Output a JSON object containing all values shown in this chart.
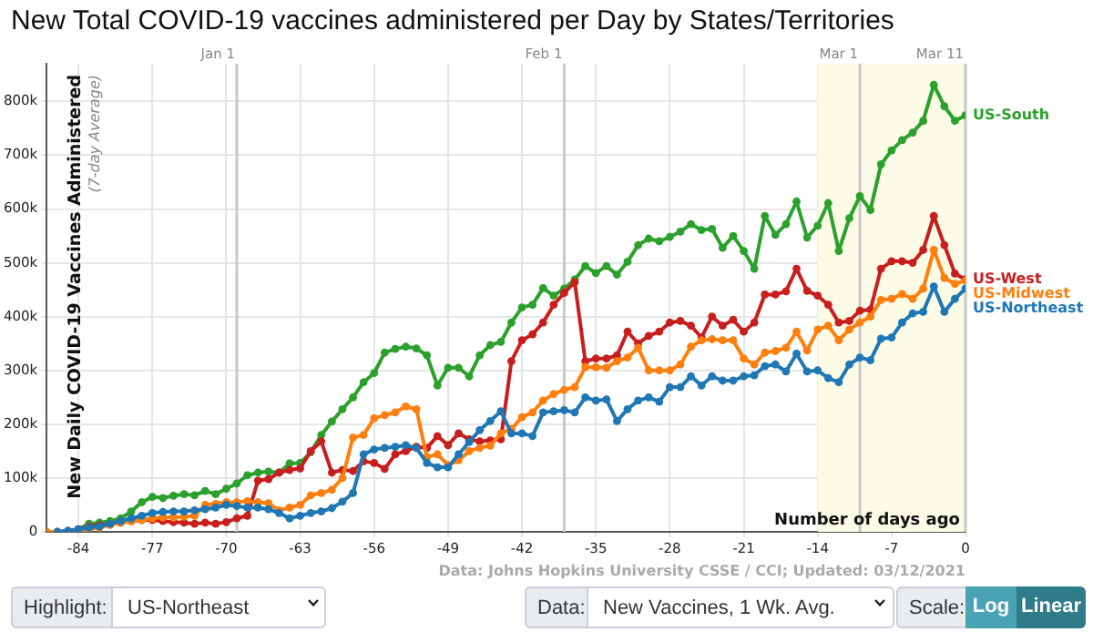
{
  "chart_data": {
    "type": "line",
    "title": "New Total COVID-19 vaccines administered per Day by States/Territories",
    "ylabel": "New Daily COVID-19 Vaccines Administered",
    "xlabel": "Number of days ago",
    "xlim": [
      -87,
      0
    ],
    "xticks": [
      -84,
      -77,
      -70,
      -63,
      -56,
      -49,
      -42,
      -35,
      -28,
      -21,
      -14,
      -7,
      0
    ],
    "ref_lines": [
      {
        "axis": "x",
        "value": -69,
        "label": "Jan 1",
        "color": "#c8c8c8"
      },
      {
        "axis": "x",
        "value": -38,
        "label": "Feb 1",
        "color": "#c8c8c8"
      },
      {
        "axis": "x",
        "value": -10,
        "label": "Mar 1",
        "color": "#c8c8c8"
      },
      {
        "axis": "x",
        "value": 0,
        "label": "Mar 11",
        "color": "#c8c8c8"
      }
    ],
    "ylim": [
      0,
      870000
    ],
    "yticks": [
      0,
      {
        "value": 100000,
        "label": "100k"
      },
      {
        "value": 200000,
        "label": "200k"
      },
      {
        "value": 300000,
        "label": "300k"
      },
      {
        "value": 400000,
        "label": "400k"
      },
      {
        "value": 500000,
        "label": "500k"
      },
      {
        "value": 600000,
        "label": "600k"
      },
      {
        "value": 700000,
        "label": "700k"
      },
      {
        "value": 800000,
        "label": "800k"
      }
    ],
    "grid": true,
    "legend": false,
    "marker": "circle",
    "line_style": "solid",
    "bands": [
      {
        "axis": "x",
        "from": -14,
        "to": 0,
        "color": "#fbfbe6"
      }
    ],
    "annotations": [
      "(7-day Average)",
      "Data: Johns Hopkins University CSSE / CCI; Updated: 03/12/2021",
      "Highlight:",
      "US-Northeast",
      "Data:",
      "New Vaccines, 1 Wk. Avg.",
      "Scale:",
      "Log",
      "Linear"
    ],
    "series": [
      {
        "name": "US-South",
        "color": "#2ca02c",
        "x": [
          -84,
          -83,
          -82,
          -81,
          -80,
          -79,
          -78,
          -77,
          -76,
          -75,
          -74,
          -73,
          -72,
          -71,
          -70,
          -69,
          -68,
          -67,
          -66,
          -65,
          -64,
          -63,
          -62,
          -61,
          -60,
          -59,
          -58,
          -57,
          -56,
          -55,
          -54,
          -53,
          -52,
          -51,
          -50,
          -49,
          -48,
          -47,
          -46,
          -45,
          -44,
          -43,
          -42,
          -41,
          -40,
          -39,
          -38,
          -37,
          -36,
          -35,
          -34,
          -33,
          -32,
          -31,
          -30,
          -29,
          -28,
          -27,
          -26,
          -25,
          -24,
          -23,
          -22,
          -21,
          -20,
          -19,
          -18,
          -17,
          -16,
          -15,
          -14,
          -13,
          -12,
          -11,
          -10,
          -9,
          -8,
          -7,
          -6,
          -5,
          -4,
          -3,
          -2,
          -1,
          0
        ],
        "values": [
          5000,
          15000,
          17000,
          20000,
          25000,
          38000,
          55000,
          65000,
          63000,
          67000,
          70000,
          68000,
          76000,
          70000,
          80000,
          90000,
          105000,
          110000,
          112000,
          110000,
          127000,
          128000,
          148000,
          180000,
          205000,
          228000,
          250000,
          278000,
          295000,
          333000,
          340000,
          344000,
          341000,
          328000,
          272000,
          305000,
          305000,
          289000,
          328000,
          347000,
          353000,
          389000,
          417000,
          422000,
          453000,
          439000,
          452000,
          469000,
          494000,
          481000,
          494000,
          478000,
          502000,
          533000,
          545000,
          540000,
          548000,
          558000,
          572000,
          561000,
          563000,
          528000,
          550000,
          522000,
          489000,
          587000,
          552000,
          572000,
          614000,
          547000,
          569000,
          611000,
          522000,
          583000,
          624000,
          598000,
          683000,
          709000,
          728000,
          742000,
          764000,
          831000,
          791000,
          764000,
          774000
        ]
      },
      {
        "name": "US-West",
        "color": "#c81e1e",
        "x": [
          -84,
          -83,
          -82,
          -81,
          -80,
          -79,
          -78,
          -77,
          -76,
          -75,
          -74,
          -73,
          -72,
          -71,
          -70,
          -69,
          -68,
          -67,
          -66,
          -65,
          -64,
          -63,
          -62,
          -61,
          -60,
          -59,
          -58,
          -57,
          -56,
          -55,
          -54,
          -53,
          -52,
          -51,
          -50,
          -49,
          -48,
          -47,
          -46,
          -45,
          -44,
          -43,
          -42,
          -41,
          -40,
          -39,
          -38,
          -37,
          -36,
          -35,
          -34,
          -33,
          -32,
          -31,
          -30,
          -29,
          -28,
          -27,
          -26,
          -25,
          -24,
          -23,
          -22,
          -21,
          -20,
          -19,
          -18,
          -17,
          -16,
          -15,
          -14,
          -13,
          -12,
          -11,
          -10,
          -9,
          -8,
          -7,
          -6,
          -5,
          -4,
          -3,
          -2,
          -1,
          0
        ],
        "values": [
          5000,
          10000,
          12000,
          15000,
          17000,
          20000,
          22000,
          22000,
          20000,
          18000,
          17000,
          15000,
          17000,
          15000,
          18000,
          25000,
          30000,
          95000,
          98000,
          110000,
          115000,
          118000,
          150000,
          168000,
          110000,
          115000,
          113000,
          131000,
          128000,
          117000,
          144000,
          150000,
          158000,
          156000,
          178000,
          161000,
          183000,
          172000,
          168000,
          170000,
          172000,
          317000,
          356000,
          367000,
          389000,
          422000,
          444000,
          464000,
          317000,
          322000,
          322000,
          328000,
          372000,
          350000,
          364000,
          372000,
          389000,
          392000,
          383000,
          361000,
          400000,
          383000,
          394000,
          372000,
          389000,
          441000,
          441000,
          447000,
          489000,
          448000,
          439000,
          422000,
          389000,
          392000,
          411000,
          413000,
          489000,
          503000,
          503000,
          500000,
          524000,
          587000,
          533000,
          480000,
          469000
        ]
      },
      {
        "name": "US-Midwest",
        "color": "#ff7f0e",
        "x": [
          -87,
          -86,
          -85,
          -84,
          -83,
          -82,
          -81,
          -80,
          -79,
          -78,
          -77,
          -76,
          -75,
          -74,
          -73,
          -72,
          -71,
          -70,
          -69,
          -68,
          -67,
          -66,
          -65,
          -64,
          -63,
          -62,
          -61,
          -60,
          -59,
          -58,
          -57,
          -56,
          -55,
          -54,
          -53,
          -52,
          -51,
          -50,
          -49,
          -48,
          -47,
          -46,
          -45,
          -44,
          -43,
          -42,
          -41,
          -40,
          -39,
          -38,
          -37,
          -36,
          -35,
          -34,
          -33,
          -32,
          -31,
          -30,
          -29,
          -28,
          -27,
          -26,
          -25,
          -24,
          -23,
          -22,
          -21,
          -20,
          -19,
          -18,
          -17,
          -16,
          -15,
          -14,
          -13,
          -12,
          -11,
          -10,
          -9,
          -8,
          -7,
          -6,
          -5,
          -4,
          -3,
          -2,
          -1,
          0
        ],
        "values": [
          0,
          0,
          2000,
          3000,
          5000,
          8000,
          13000,
          17000,
          20000,
          22000,
          25000,
          27000,
          27000,
          28000,
          30000,
          50000,
          52000,
          55000,
          55000,
          57000,
          55000,
          53000,
          40000,
          45000,
          50000,
          68000,
          72000,
          78000,
          100000,
          175000,
          180000,
          211000,
          217000,
          222000,
          233000,
          228000,
          139000,
          144000,
          124000,
          133000,
          150000,
          156000,
          160000,
          183000,
          191000,
          213000,
          222000,
          244000,
          256000,
          264000,
          269000,
          306000,
          306000,
          305000,
          317000,
          324000,
          342000,
          300000,
          300000,
          300000,
          311000,
          344000,
          356000,
          358000,
          356000,
          356000,
          322000,
          311000,
          333000,
          336000,
          342000,
          372000,
          337000,
          376000,
          383000,
          356000,
          376000,
          389000,
          400000,
          431000,
          433000,
          442000,
          433000,
          452000,
          524000,
          472000,
          461000,
          467000
        ]
      },
      {
        "name": "US-Northeast",
        "color": "#1f77b4",
        "x": [
          -86,
          -85,
          -84,
          -83,
          -82,
          -81,
          -80,
          -79,
          -78,
          -77,
          -76,
          -75,
          -74,
          -73,
          -72,
          -71,
          -70,
          -69,
          -68,
          -67,
          -66,
          -65,
          -64,
          -63,
          -62,
          -61,
          -60,
          -59,
          -58,
          -57,
          -56,
          -55,
          -54,
          -53,
          -52,
          -51,
          -50,
          -49,
          -48,
          -47,
          -46,
          -45,
          -44,
          -43,
          -42,
          -41,
          -40,
          -39,
          -38,
          -37,
          -36,
          -35,
          -34,
          -33,
          -32,
          -31,
          -30,
          -29,
          -28,
          -27,
          -26,
          -25,
          -24,
          -23,
          -22,
          -21,
          -20,
          -19,
          -18,
          -17,
          -16,
          -15,
          -14,
          -13,
          -12,
          -11,
          -10,
          -9,
          -8,
          -7,
          -6,
          -5,
          -4,
          -3,
          -2,
          -1,
          0
        ],
        "values": [
          0,
          2000,
          5000,
          8000,
          10000,
          15000,
          20000,
          25000,
          30000,
          35000,
          37000,
          38000,
          38000,
          40000,
          42000,
          45000,
          50000,
          48000,
          45000,
          45000,
          42000,
          35000,
          25000,
          30000,
          35000,
          38000,
          44000,
          56000,
          72000,
          144000,
          153000,
          156000,
          158000,
          161000,
          156000,
          128000,
          120000,
          120000,
          144000,
          167000,
          189000,
          206000,
          224000,
          183000,
          183000,
          178000,
          222000,
          224000,
          226000,
          222000,
          250000,
          244000,
          246000,
          206000,
          228000,
          244000,
          250000,
          242000,
          269000,
          269000,
          289000,
          272000,
          289000,
          281000,
          281000,
          289000,
          291000,
          308000,
          311000,
          298000,
          331000,
          298000,
          300000,
          286000,
          278000,
          311000,
          324000,
          319000,
          359000,
          361000,
          389000,
          406000,
          409000,
          456000,
          409000,
          433000,
          452000
        ]
      }
    ]
  }
}
